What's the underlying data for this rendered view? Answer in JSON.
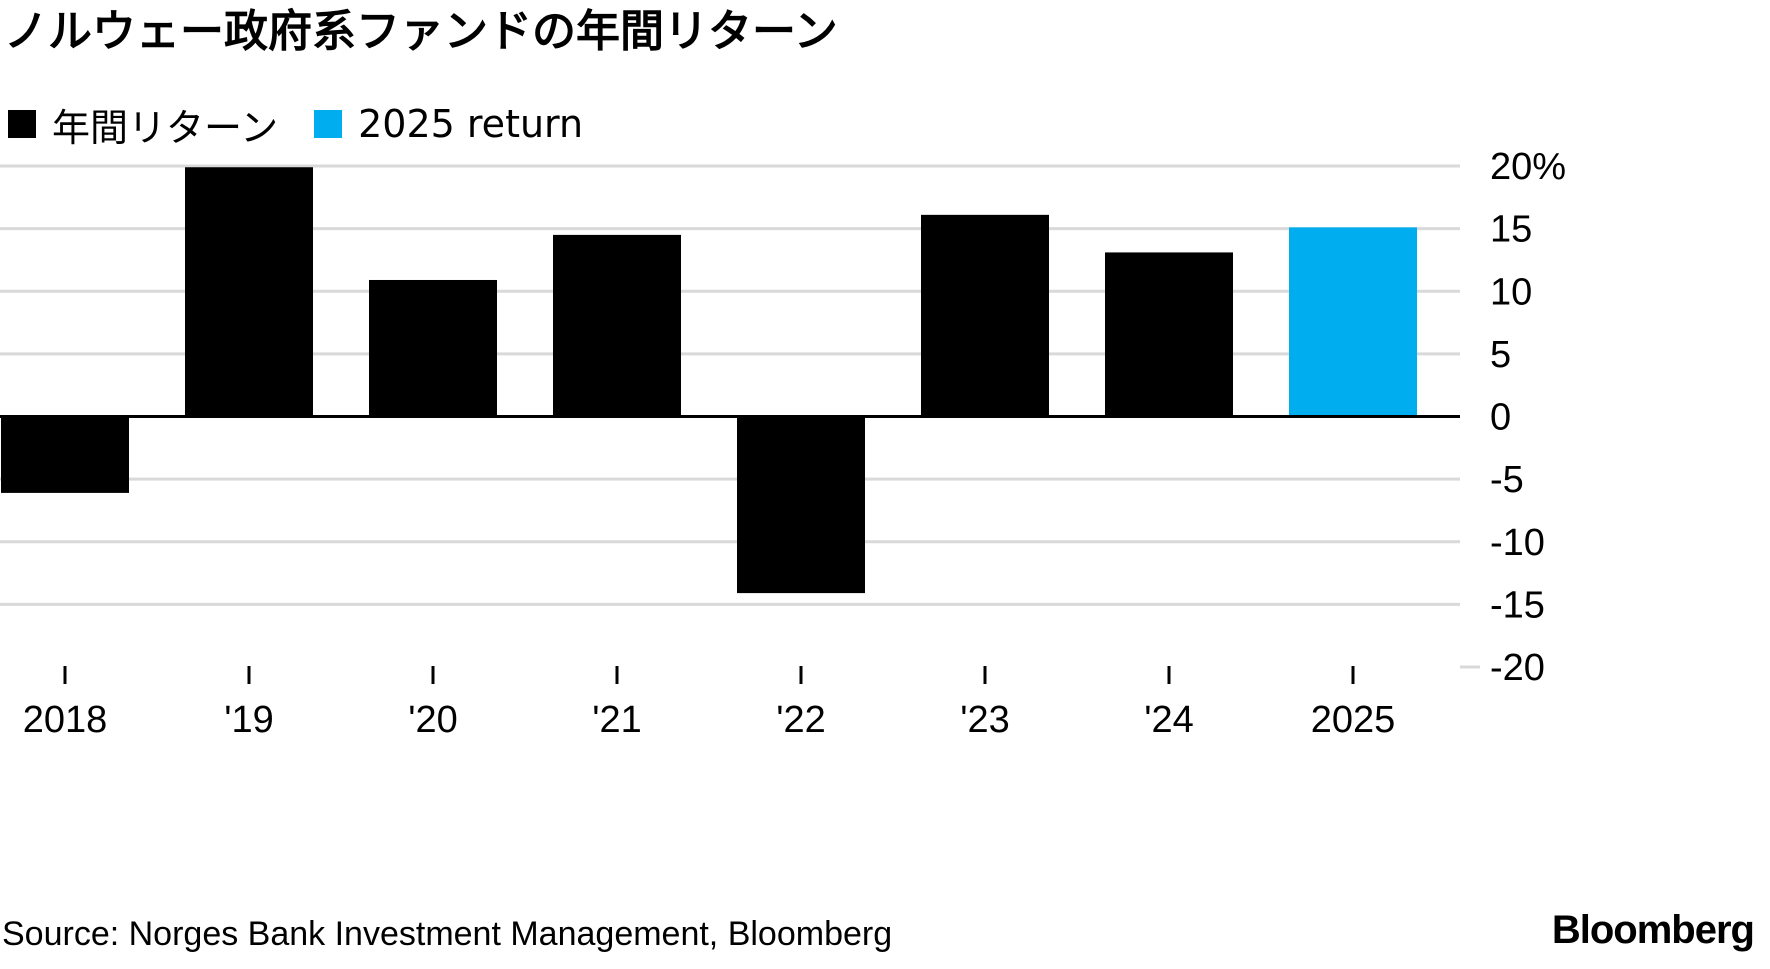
{
  "title": "ノルウェー政府系ファンドの年間リターン",
  "legend": [
    {
      "label": "年間リターン",
      "color": "#000000"
    },
    {
      "label": "2025 return",
      "color": "#00aeef"
    }
  ],
  "source": "Source: Norges Bank Investment Management, Bloomberg",
  "brand": "Bloomberg",
  "chart_data": {
    "type": "bar",
    "categories": [
      "2018",
      "'19",
      "'20",
      "'21",
      "'22",
      "'23",
      "'24",
      "2025"
    ],
    "series": [
      {
        "name": "年間リターン",
        "values": [
          -6.1,
          19.9,
          10.9,
          14.5,
          -14.1,
          16.1,
          13.1,
          null
        ],
        "color": "#000000"
      },
      {
        "name": "2025 return",
        "values": [
          null,
          null,
          null,
          null,
          null,
          null,
          null,
          15.1
        ],
        "color": "#00aeef"
      }
    ],
    "y_ticks": [
      "20%",
      "15",
      "10",
      "5",
      "0",
      "-5",
      "-10",
      "-15",
      "-20"
    ],
    "y_tick_values": [
      20,
      15,
      10,
      5,
      0,
      -5,
      -10,
      -15,
      -20
    ],
    "ylim": [
      -20,
      20
    ],
    "grid": true,
    "legend_position": "top-left",
    "xlabel": "",
    "ylabel": ""
  }
}
